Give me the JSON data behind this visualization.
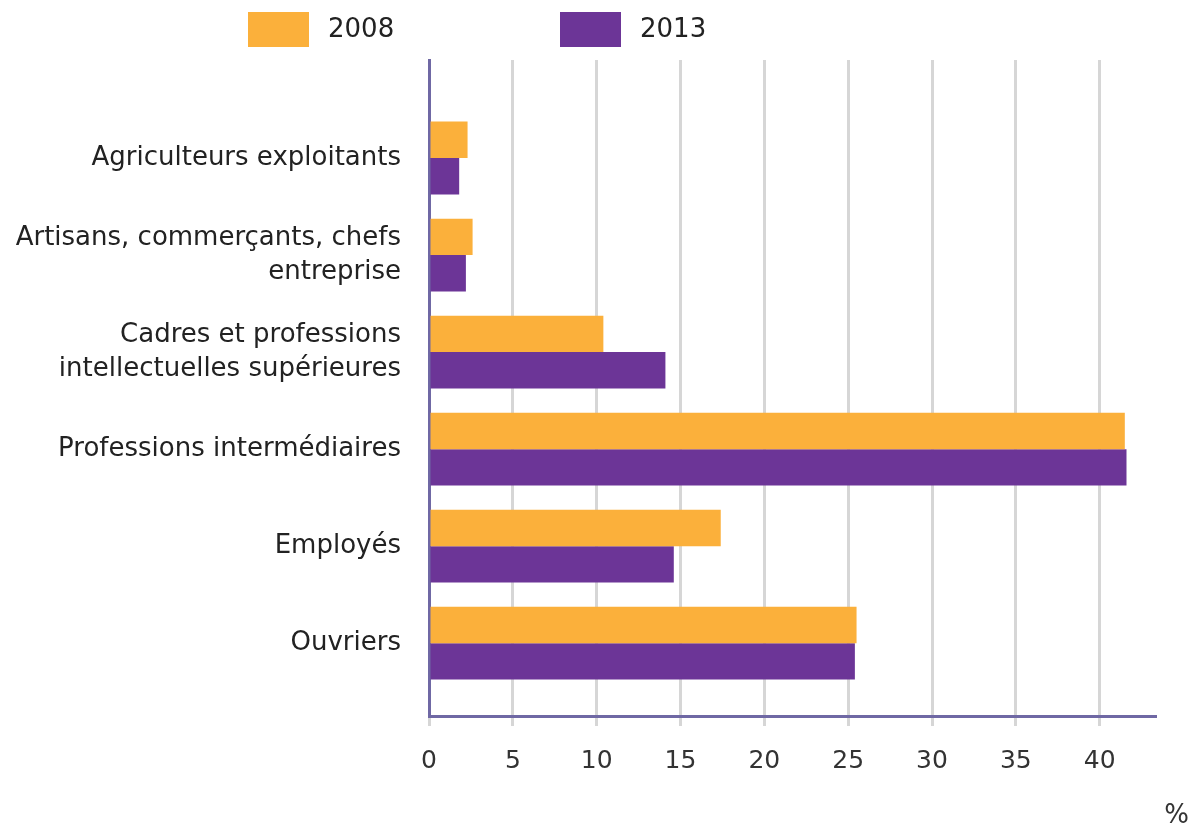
{
  "chart_data": {
    "type": "bar",
    "orientation": "horizontal",
    "categories": [
      "Agriculteurs exploitants",
      "Artisans, commerçants, chefs entreprise",
      "Cadres et professions intellectuelles supérieures",
      "Professions intermédiaires",
      "Employés",
      "Ouvriers"
    ],
    "series": [
      {
        "name": "2008",
        "color": "#fbb03b",
        "values": [
          2.3,
          2.6,
          10.4,
          41.5,
          17.4,
          25.5
        ]
      },
      {
        "name": "2013",
        "color": "#6c3597",
        "values": [
          1.8,
          2.2,
          14.1,
          41.6,
          14.6,
          25.4
        ]
      }
    ],
    "xlabel": "%",
    "xlim": [
      0,
      43.3
    ],
    "xticks": [
      0,
      5,
      10,
      15,
      20,
      25,
      30,
      35,
      40
    ],
    "grid": "x",
    "legend": "top"
  }
}
